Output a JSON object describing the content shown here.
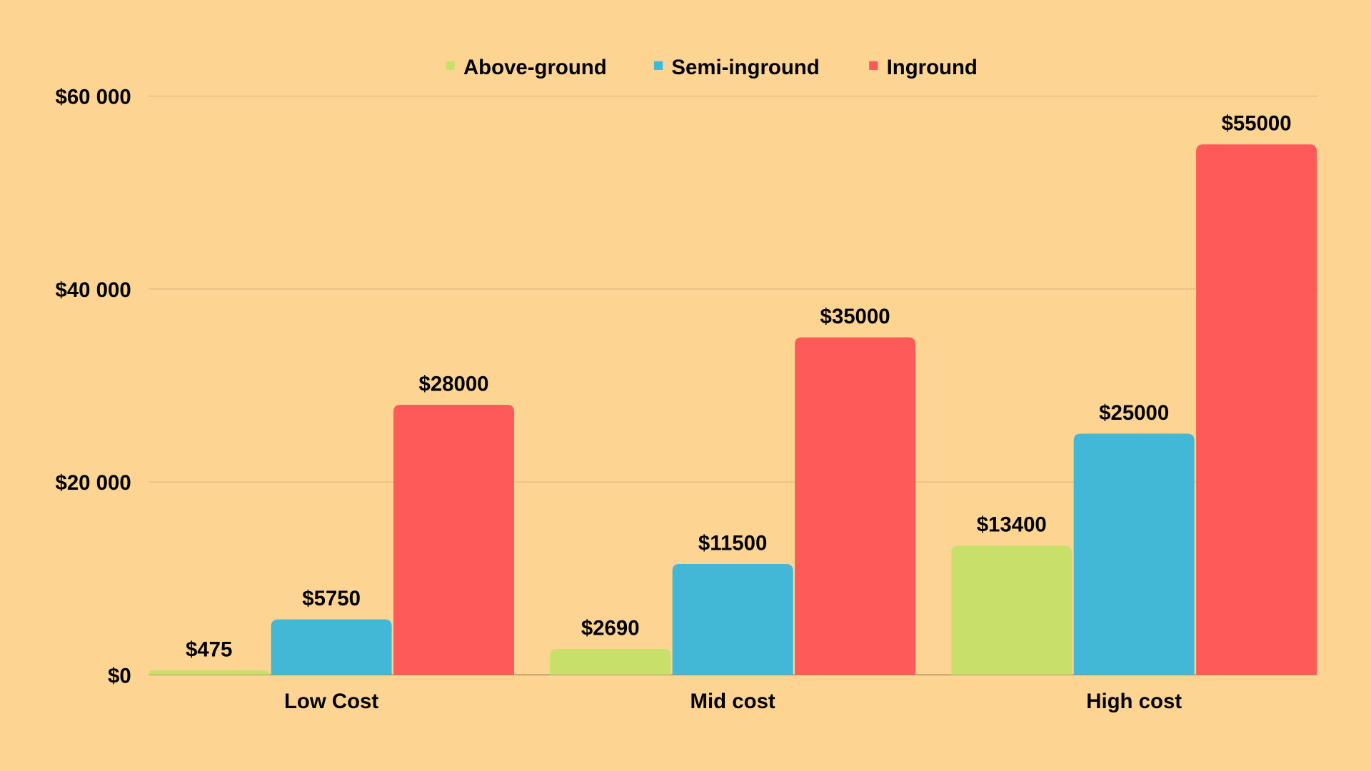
{
  "chart_data": {
    "type": "bar",
    "title": "",
    "xlabel": "",
    "ylabel": "",
    "categories": [
      "Low Cost",
      "Mid cost",
      "High cost"
    ],
    "series": [
      {
        "name": "Above-ground",
        "color": "#C8E06A",
        "values": [
          475,
          2690,
          13400
        ],
        "labels": [
          "$475",
          "$2690",
          "$13400"
        ]
      },
      {
        "name": "Semi-inground",
        "color": "#42B8D6",
        "values": [
          5750,
          11500,
          25000
        ],
        "labels": [
          "$5750",
          "$11500",
          "$25000"
        ]
      },
      {
        "name": "Inground",
        "color": "#FF5A5A",
        "values": [
          28000,
          35000,
          55000
        ],
        "labels": [
          "$28000",
          "$35000",
          "$55000"
        ]
      }
    ],
    "ylim": [
      0,
      60000
    ],
    "yticks": [
      0,
      20000,
      40000,
      60000
    ],
    "ytick_labels": [
      "$0",
      "$20 000",
      "$40 000",
      "$60 000"
    ],
    "grid": true,
    "legend": "top-center",
    "background": "#FED493"
  }
}
